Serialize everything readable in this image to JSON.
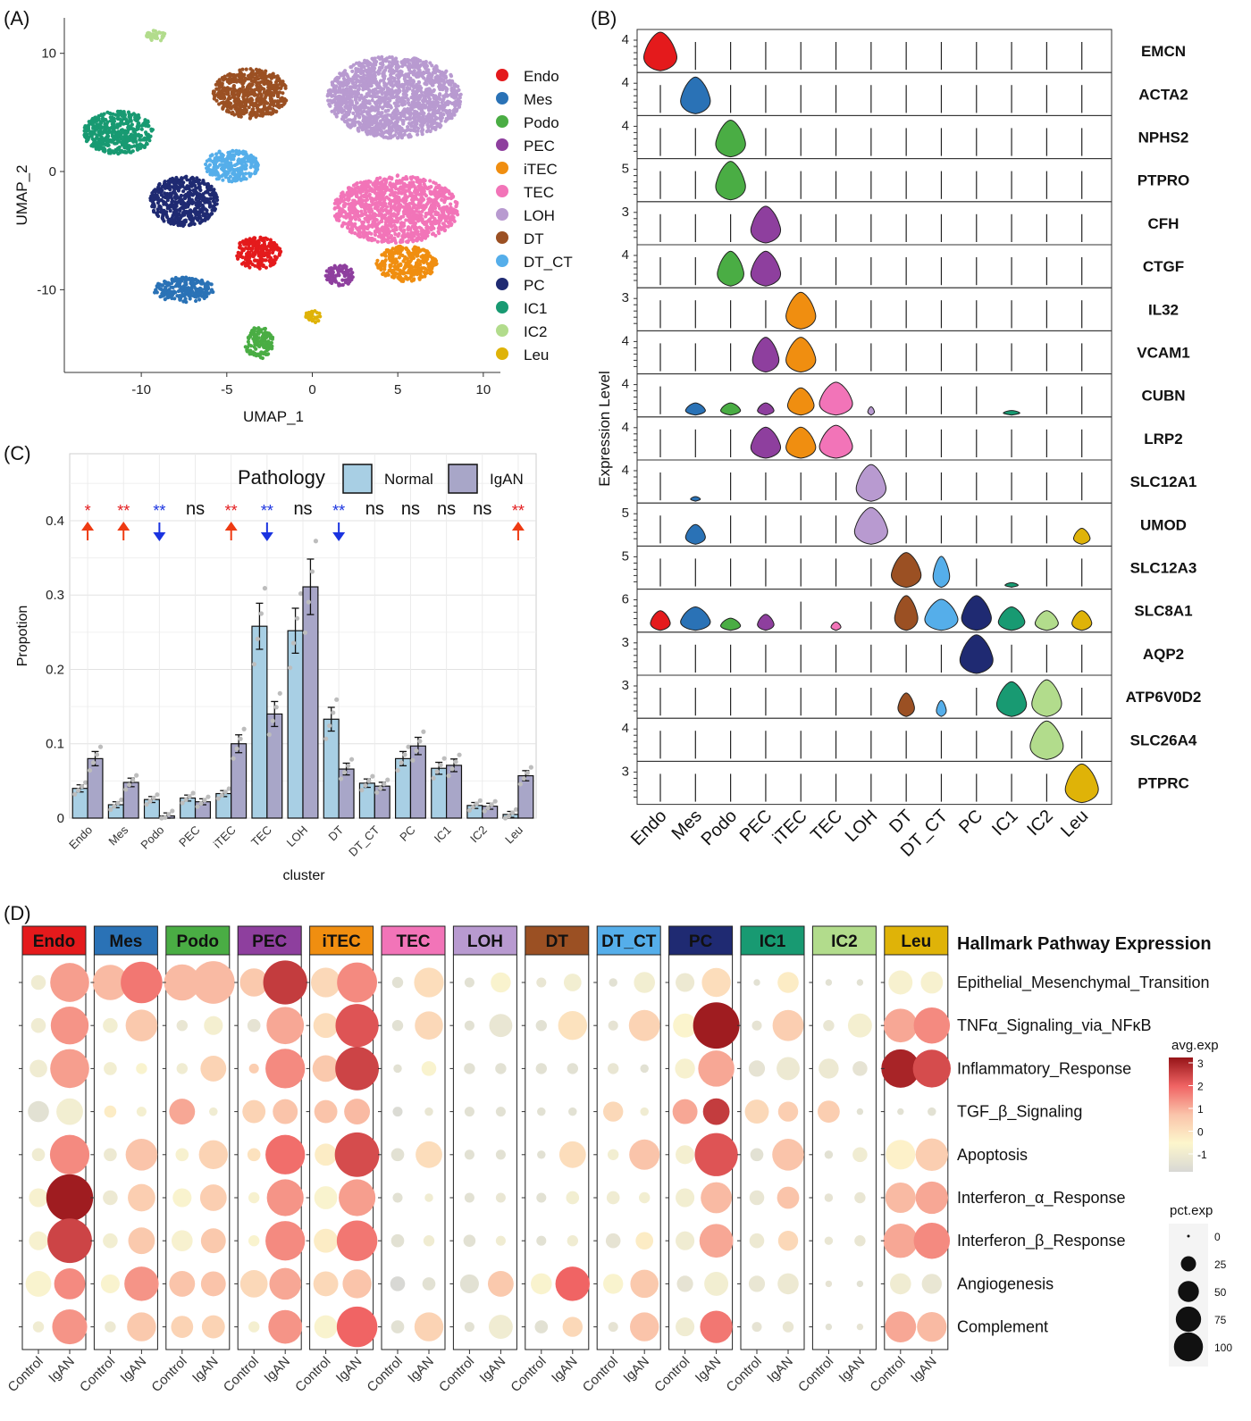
{
  "panel_labels": [
    "(A)",
    "(B)",
    "(C)",
    "(D)"
  ],
  "clusters": [
    "Endo",
    "Mes",
    "Podo",
    "PEC",
    "iTEC",
    "TEC",
    "LOH",
    "DT",
    "DT_CT",
    "PC",
    "IC1",
    "IC2",
    "Leu"
  ],
  "colors": {
    "Endo": "#e41a1c",
    "Mes": "#2a72b6",
    "Podo": "#4aad44",
    "PEC": "#8e3f9e",
    "iTEC": "#f08e10",
    "TEC": "#f274b8",
    "LOH": "#b89ad0",
    "DT": "#9b5023",
    "DT_CT": "#55aeea",
    "PC": "#1f2a72",
    "IC1": "#189a72",
    "IC2": "#b2dc8c",
    "Leu": "#dfb308"
  },
  "chart_data": [
    {
      "type": "scatter",
      "panel": "(A)",
      "xlabel": "UMAP_1",
      "ylabel": "UMAP_2",
      "xticks": [
        -10,
        -5,
        0,
        5,
        10
      ],
      "yticks": [
        10,
        0,
        -10
      ],
      "xlim": [
        -14.5,
        11
      ],
      "ylim": [
        -17,
        13
      ],
      "legend_position": "right",
      "series": [
        {
          "name": "Endo",
          "x": -3.2,
          "y": -6.9
        },
        {
          "name": "Mes",
          "x": -7.5,
          "y": -10.0
        },
        {
          "name": "Podo",
          "x": -3.1,
          "y": -14.5
        },
        {
          "name": "PEC",
          "x": 1.6,
          "y": -8.8
        },
        {
          "name": "iTEC",
          "x": 5.5,
          "y": -7.8
        },
        {
          "name": "TEC",
          "x": 4.9,
          "y": -3.2
        },
        {
          "name": "LOH",
          "x": 4.8,
          "y": 6.3
        },
        {
          "name": "DT",
          "x": -3.6,
          "y": 6.6
        },
        {
          "name": "DT_CT",
          "x": -4.7,
          "y": 0.5
        },
        {
          "name": "PC",
          "x": -7.5,
          "y": -2.5
        },
        {
          "name": "IC1",
          "x": -11.3,
          "y": 3.3
        },
        {
          "name": "IC2",
          "x": -9.1,
          "y": 11.5
        },
        {
          "name": "Leu",
          "x": 0,
          "y": -12.3
        }
      ]
    },
    {
      "type": "violin",
      "panel": "(B)",
      "ylabel": "Expression Level",
      "genes": [
        "EMCN",
        "ACTA2",
        "NPHS2",
        "PTPRO",
        "CFH",
        "CTGF",
        "IL32",
        "VCAM1",
        "CUBN",
        "LRP2",
        "SLC12A1",
        "UMOD",
        "SLC12A3",
        "SLC8A1",
        "AQP2",
        "ATP6V0D2",
        "SLC26A4",
        "PTPRC"
      ],
      "ymax_labels": [
        4,
        4,
        4,
        5,
        3,
        4,
        3,
        4,
        4,
        4,
        4,
        5,
        5,
        6,
        3,
        3,
        4,
        3
      ]
    },
    {
      "type": "bar",
      "panel": "(C)",
      "xlabel": "cluster",
      "ylabel": "Propotion",
      "ylim": [
        0,
        0.49
      ],
      "yticks": [
        0.0,
        0.1,
        0.2,
        0.3,
        0.4
      ],
      "legend_title": "Pathology",
      "legend_position": "top-right",
      "categories": [
        "Endo",
        "Mes",
        "Podo",
        "PEC",
        "iTEC",
        "TEC",
        "LOH",
        "DT",
        "DT_CT",
        "PC",
        "IC1",
        "IC2",
        "Leu"
      ],
      "series": [
        {
          "name": "Normal",
          "color": "#a8cfe4",
          "values": [
            0.04,
            0.018,
            0.025,
            0.027,
            0.033,
            0.258,
            0.252,
            0.133,
            0.047,
            0.08,
            0.067,
            0.017,
            0.005
          ]
        },
        {
          "name": "IgAN",
          "color": "#a8a6c8",
          "values": [
            0.08,
            0.048,
            0.003,
            0.022,
            0.1,
            0.14,
            0.311,
            0.066,
            0.043,
            0.097,
            0.071,
            0.016,
            0.057
          ]
        }
      ],
      "significance": [
        "*",
        "**",
        "**",
        "ns",
        "**",
        "**",
        "ns",
        "**",
        "ns",
        "ns",
        "ns",
        "ns",
        "**"
      ],
      "direction": [
        "up",
        "up",
        "down",
        "",
        "up",
        "down",
        "",
        "down",
        "",
        "",
        "",
        "",
        "up"
      ]
    },
    {
      "type": "dotplot",
      "panel": "(D)",
      "title": "Hallmark Pathway Expression",
      "groups": [
        "Control",
        "IgAN"
      ],
      "pathways": [
        "Epithelial_Mesenchymal_Transition",
        "TNFα_Signaling_via_NFκB",
        "Inflammatory_Response",
        "TGF_β_Signaling",
        "Apoptosis",
        "Interferon_α_Response",
        "Interferon_β_Response",
        "Angiogenesis",
        "Complement"
      ],
      "color_legend_title": "avg.exp",
      "color_legend_ticks": [
        3,
        2,
        1,
        0,
        -1
      ],
      "size_legend_title": "pct.exp",
      "size_legend_ticks": [
        0,
        25,
        50,
        75,
        100
      ],
      "avg_exp": [
        [
          [
            -0.6,
            1.4
          ],
          [
            -0.6,
            1.5
          ],
          [
            -0.6,
            1.4
          ],
          [
            -1,
            -0.5
          ],
          [
            -0.6,
            1.6
          ],
          [
            -0.3,
            2.9
          ],
          [
            -0.3,
            2.4
          ],
          [
            -0.2,
            1.6
          ],
          [
            -0.6,
            1.5
          ]
        ],
        [
          [
            1.1,
            1.8
          ],
          [
            -0.5,
            0.9
          ],
          [
            -0.5,
            -0.2
          ],
          [
            0.2,
            -0.4
          ],
          [
            -0.7,
            1.0
          ],
          [
            -0.7,
            0.8
          ],
          [
            -0.5,
            0.9
          ],
          [
            -0.2,
            1.5
          ],
          [
            -0.7,
            0.9
          ]
        ],
        [
          [
            1.1,
            1.1
          ],
          [
            -0.8,
            -0.4
          ],
          [
            -0.6,
            0.7
          ],
          [
            1.3,
            -0.6
          ],
          [
            -0.3,
            0.7
          ],
          [
            -0.2,
            0.8
          ],
          [
            -0.3,
            0.9
          ],
          [
            1.0,
            1.0
          ],
          [
            0.7,
            0.7
          ]
        ],
        [
          [
            0.9,
            2.5
          ],
          [
            -0.9,
            1.3
          ],
          [
            0.8,
            1.6
          ],
          [
            0.7,
            1.0
          ],
          [
            0.4,
            1.9
          ],
          [
            -0.3,
            1.5
          ],
          [
            -0.2,
            1.6
          ],
          [
            0.6,
            1.3
          ],
          [
            -0.4,
            1.5
          ]
        ],
        [
          [
            0.6,
            1.6
          ],
          [
            0.5,
            2.2
          ],
          [
            0.9,
            2.4
          ],
          [
            1.0,
            1.1
          ],
          [
            0.2,
            2.3
          ],
          [
            -0.2,
            1.4
          ],
          [
            0.2,
            1.8
          ],
          [
            0.6,
            1.0
          ],
          [
            -0.2,
            2.0
          ]
        ],
        [
          [
            -1,
            0.5
          ],
          [
            -1,
            0.6
          ],
          [
            -1,
            -0.2
          ],
          [
            -1.2,
            -0.8
          ],
          [
            -1,
            0.5
          ],
          [
            -1,
            -0.6
          ],
          [
            -1,
            -0.6
          ],
          [
            -1.3,
            -1
          ],
          [
            -1,
            0.7
          ]
        ],
        [
          [
            -1,
            -0.2
          ],
          [
            -1,
            -0.8
          ],
          [
            -1,
            -1
          ],
          [
            -1,
            -1
          ],
          [
            -1,
            -1
          ],
          [
            -1,
            -0.8
          ],
          [
            -1,
            -0.6
          ],
          [
            -1,
            0.9
          ],
          [
            -1,
            -0.6
          ]
        ],
        [
          [
            -0.8,
            -0.5
          ],
          [
            -1,
            0.4
          ],
          [
            -1,
            -1
          ],
          [
            -1,
            -1
          ],
          [
            -1,
            0.5
          ],
          [
            -1,
            -0.5
          ],
          [
            -1,
            -0.6
          ],
          [
            -0.2,
            2.0
          ],
          [
            -1,
            0.6
          ]
        ],
        [
          [
            -1,
            -0.5
          ],
          [
            -0.9,
            0.7
          ],
          [
            -0.8,
            -1
          ],
          [
            0.6,
            -0.6
          ],
          [
            -0.5,
            1.0
          ],
          [
            -0.6,
            -0.5
          ],
          [
            -0.9,
            0.2
          ],
          [
            -0.2,
            0.9
          ],
          [
            -0.9,
            1.0
          ]
        ],
        [
          [
            -0.7,
            0.5
          ],
          [
            -0.1,
            2.9
          ],
          [
            -0.3,
            1.3
          ],
          [
            1.3,
            2.5
          ],
          [
            -0.4,
            2.2
          ],
          [
            -0.5,
            1.1
          ],
          [
            -0.6,
            1.3
          ],
          [
            -0.9,
            -0.5
          ],
          [
            -0.6,
            1.8
          ]
        ],
        [
          [
            -1,
            0.2
          ],
          [
            -0.9,
            0.8
          ],
          [
            -0.9,
            -0.7
          ],
          [
            0.6,
            0.8
          ],
          [
            -1,
            1.0
          ],
          [
            -0.8,
            1.0
          ],
          [
            -0.7,
            0.6
          ],
          [
            -0.8,
            -0.7
          ],
          [
            -0.9,
            -0.8
          ]
        ],
        [
          [
            -1,
            -1
          ],
          [
            -0.8,
            -0.4
          ],
          [
            -0.7,
            -0.9
          ],
          [
            0.8,
            -1
          ],
          [
            -1,
            -0.6
          ],
          [
            -0.9,
            -0.8
          ],
          [
            -0.8,
            -0.8
          ],
          [
            -0.9,
            -1
          ],
          [
            -1,
            -0.9
          ]
        ],
        [
          [
            -0.3,
            -0.3
          ],
          [
            1.3,
            1.6
          ],
          [
            2.8,
            2.3
          ],
          [
            -1,
            -1
          ],
          [
            0.1,
            0.8
          ],
          [
            1.1,
            1.3
          ],
          [
            1.3,
            1.6
          ],
          [
            -0.6,
            -0.8
          ],
          [
            1.3,
            1.1
          ]
        ]
      ],
      "pct_exp": [
        [
          [
            8,
            68
          ],
          [
            8,
            64
          ],
          [
            12,
            68
          ],
          [
            18,
            30
          ],
          [
            6,
            70
          ],
          [
            14,
            100
          ],
          [
            14,
            90
          ],
          [
            28,
            42
          ],
          [
            4,
            54
          ]
        ],
        [
          [
            55,
            78
          ],
          [
            8,
            44
          ],
          [
            6,
            4
          ],
          [
            5,
            3
          ],
          [
            6,
            44
          ],
          [
            8,
            32
          ],
          [
            8,
            30
          ],
          [
            14,
            52
          ],
          [
            4,
            36
          ]
        ],
        [
          [
            58,
            82
          ],
          [
            4,
            14
          ],
          [
            4,
            28
          ],
          [
            28,
            2
          ],
          [
            6,
            36
          ],
          [
            14,
            30
          ],
          [
            18,
            26
          ],
          [
            28,
            26
          ],
          [
            20,
            22
          ]
        ],
        [
          [
            34,
            88
          ],
          [
            6,
            62
          ],
          [
            3,
            70
          ],
          [
            22,
            26
          ],
          [
            6,
            70
          ],
          [
            4,
            60
          ],
          [
            4,
            70
          ],
          [
            32,
            44
          ],
          [
            4,
            50
          ]
        ],
        [
          [
            38,
            72
          ],
          [
            26,
            84
          ],
          [
            30,
            86
          ],
          [
            22,
            28
          ],
          [
            20,
            90
          ],
          [
            22,
            60
          ],
          [
            24,
            74
          ],
          [
            26,
            36
          ],
          [
            22,
            74
          ]
        ],
        [
          [
            4,
            38
          ],
          [
            4,
            34
          ],
          [
            2,
            8
          ],
          [
            3,
            2
          ],
          [
            6,
            30
          ],
          [
            3,
            2
          ],
          [
            6,
            4
          ],
          [
            8,
            6
          ],
          [
            6,
            36
          ]
        ],
        [
          [
            3,
            16
          ],
          [
            3,
            22
          ],
          [
            4,
            4
          ],
          [
            3,
            3
          ],
          [
            3,
            3
          ],
          [
            3,
            3
          ],
          [
            5,
            3
          ],
          [
            14,
            28
          ],
          [
            3,
            24
          ]
        ],
        [
          [
            3,
            12
          ],
          [
            4,
            36
          ],
          [
            4,
            4
          ],
          [
            2,
            2
          ],
          [
            2,
            30
          ],
          [
            3,
            6
          ],
          [
            3,
            4
          ],
          [
            18,
            52
          ],
          [
            6,
            16
          ]
        ],
        [
          [
            2,
            18
          ],
          [
            3,
            42
          ],
          [
            4,
            2
          ],
          [
            16,
            2
          ],
          [
            4,
            40
          ],
          [
            6,
            4
          ],
          [
            8,
            12
          ],
          [
            16,
            34
          ],
          [
            3,
            36
          ]
        ],
        [
          [
            14,
            36
          ],
          [
            24,
            98
          ],
          [
            16,
            58
          ],
          [
            26,
            30
          ],
          [
            14,
            84
          ],
          [
            14,
            42
          ],
          [
            14,
            50
          ],
          [
            10,
            24
          ],
          [
            14,
            46
          ]
        ],
        [
          [
            1,
            18
          ],
          [
            3,
            42
          ],
          [
            10,
            22
          ],
          [
            24,
            16
          ],
          [
            6,
            44
          ],
          [
            8,
            20
          ],
          [
            8,
            16
          ],
          [
            10,
            18
          ],
          [
            3,
            4
          ]
        ],
        [
          [
            1,
            1
          ],
          [
            4,
            24
          ],
          [
            16,
            8
          ],
          [
            20,
            1
          ],
          [
            2,
            8
          ],
          [
            2,
            4
          ],
          [
            2,
            4
          ],
          [
            1,
            1
          ],
          [
            1,
            1
          ]
        ],
        [
          [
            24,
            20
          ],
          [
            50,
            58
          ],
          [
            66,
            64
          ],
          [
            1,
            2
          ],
          [
            38,
            46
          ],
          [
            40,
            46
          ],
          [
            52,
            58
          ],
          [
            18,
            16
          ],
          [
            42,
            38
          ]
        ]
      ]
    }
  ]
}
